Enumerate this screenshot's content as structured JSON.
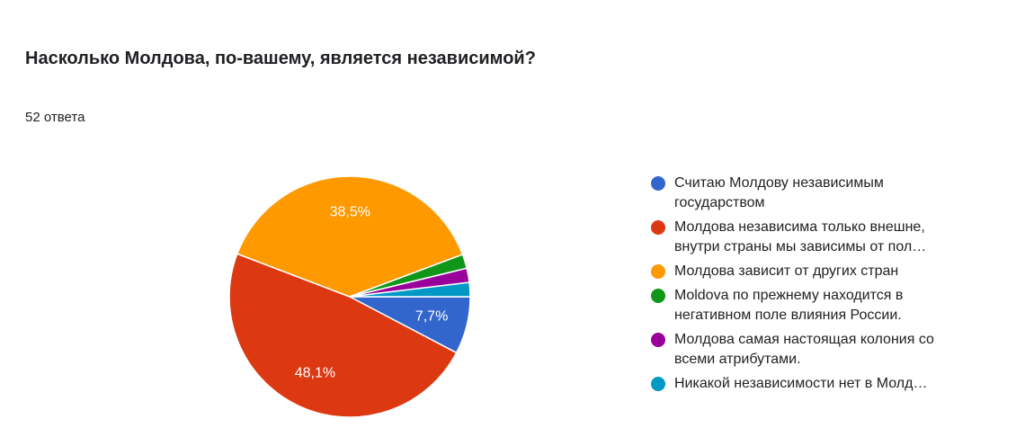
{
  "chart_data": {
    "type": "pie",
    "title": "Насколько Молдова, по-вашему, является независимой?",
    "subtitle": "52 ответа",
    "categories": [
      "Считаю Молдову независимым государством",
      "Молдова независима только внешне, внутри страны мы зависимы от пол…",
      "Молдова зависит от других стран",
      "Moldova по прежнему находится в негативном поле влияния России.",
      "Молдова самая настоящая колония со всеми атрибутами.",
      "Никакой независимости нет в Молд…"
    ],
    "values": [
      7.7,
      48.1,
      38.5,
      1.9,
      1.9,
      1.9
    ],
    "value_labels": [
      "7,7%",
      "48,1%",
      "38,5%",
      null,
      null,
      null
    ],
    "colors": [
      "#3366cc",
      "#dc3912",
      "#ff9900",
      "#109618",
      "#990099",
      "#0099c6"
    ],
    "legend": "right"
  }
}
